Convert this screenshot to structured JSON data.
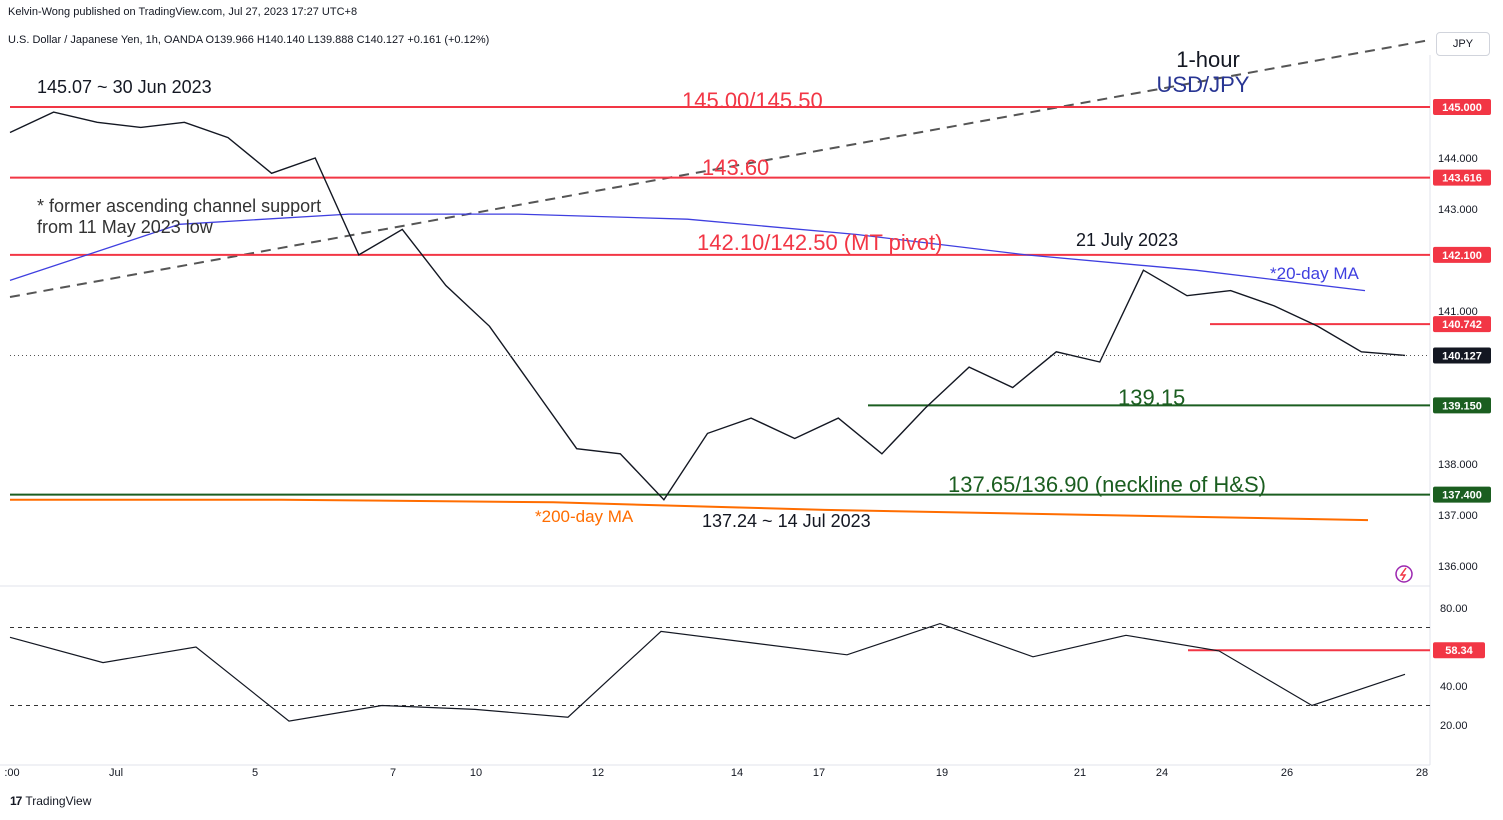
{
  "header": {
    "published": "Kelvin-Wong published on TradingView.com, Jul 27, 2023 17:27 UTC+8",
    "symbol_line": "U.S. Dollar / Japanese Yen, 1h, OANDA  O139.966  H140.140  L139.888  C140.127  +0.161 (+0.12%)"
  },
  "scale_button": "JPY",
  "footer_logo": "TradingView",
  "colors": {
    "resistance": "#f23645",
    "support": "#1b5e20",
    "ma20": "#3f3fe0",
    "ma200": "#ff6d00",
    "trendline": "#555555",
    "title_blue": "#283593"
  },
  "chart_data": [
    {
      "type": "line",
      "title": "1-hour",
      "subtitle": "USD/JPY",
      "ylim": [
        135.6,
        146.0
      ],
      "x_ticks": [
        ":00",
        "Jul",
        "5",
        "7",
        "10",
        "12",
        "14",
        "17",
        "19",
        "21",
        "24",
        "26",
        "28"
      ],
      "y_ticks": [
        "136.000",
        "137.000",
        "138.000",
        "141.000",
        "143.000",
        "144.000"
      ],
      "series": [
        {
          "name": "",
          "x": [
            "Jun 29",
            "Jun 30",
            "Jul 3",
            "Jul 4",
            "Jul 5",
            "Jul 6",
            "Jul 7",
            "Jul 7 pm",
            "Jul 10",
            "Jul 10 pm",
            "Jul 11",
            "Jul 12",
            "Jul 12 pm",
            "Jul 13",
            "Jul 13 pm",
            "Jul 14",
            "Jul 14 pm",
            "Jul 17",
            "Jul 18",
            "Jul 18 pm",
            "Jul 19",
            "Jul 19 pm",
            "Jul 20",
            "Jul 20 pm",
            "Jul 21",
            "Jul 21 pm",
            "Jul 24",
            "Jul 24 pm",
            "Jul 25",
            "Jul 25 pm",
            "Jul 26",
            "Jul 26 pm",
            "Jul 27"
          ],
          "values": [
            144.5,
            144.9,
            144.7,
            144.6,
            144.7,
            144.4,
            143.7,
            144.0,
            142.1,
            142.6,
            141.5,
            140.7,
            139.5,
            138.3,
            138.2,
            137.3,
            138.6,
            138.9,
            138.5,
            138.9,
            138.2,
            139.1,
            139.9,
            139.5,
            140.2,
            140.0,
            141.8,
            141.3,
            141.4,
            141.1,
            140.7,
            140.2,
            140.13
          ]
        }
      ],
      "moving_averages": [
        {
          "name": "*20-day MA",
          "x": [
            "Jun 29",
            "Jul 7",
            "Jul 10",
            "Jul 12",
            "Jul 14",
            "Jul 18",
            "Jul 20",
            "Jul 24",
            "Jul 26"
          ],
          "values": [
            141.6,
            142.7,
            142.9,
            142.9,
            142.8,
            142.5,
            142.1,
            141.8,
            141.4
          ]
        },
        {
          "name": "*200-day MA",
          "x": [
            "Jun 29",
            "Jul 7",
            "Jul 12",
            "Jul 17",
            "Jul 21",
            "Jul 26"
          ],
          "values": [
            137.3,
            137.3,
            137.25,
            137.1,
            137.0,
            136.9
          ]
        }
      ],
      "levels": [
        {
          "label": "145.00/145.50",
          "value": 145.0,
          "tag": "145.000",
          "kind": "resistance"
        },
        {
          "label": "143.60",
          "value": 143.616,
          "tag": "143.616",
          "kind": "resistance"
        },
        {
          "label": "142.10/142.50 (MT pivot)",
          "value": 142.1,
          "tag": "142.100",
          "kind": "resistance"
        },
        {
          "label": "",
          "value": 140.742,
          "tag": "140.742",
          "kind": "resistance"
        },
        {
          "label": "139.15",
          "value": 139.15,
          "tag": "139.150",
          "kind": "support"
        },
        {
          "label": "137.65/136.90 (neckline of H&S)",
          "value": 137.4,
          "tag": "137.400",
          "kind": "support"
        }
      ],
      "last_price_tag": "140.127",
      "annotations": {
        "high": "145.07 ~ 30 Jun 2023",
        "low": "137.24 ~ 14 Jul 2023",
        "swing": "21 July 2023",
        "channel_note_1": "* former ascending channel support",
        "channel_note_2": "from 11 May 2023 low"
      }
    },
    {
      "type": "line",
      "ylim": [
        10,
        86
      ],
      "y_ticks": [
        "20.00",
        "40.00",
        "80.00"
      ],
      "bands": [
        70,
        30
      ],
      "series": [
        {
          "name": "",
          "x": [
            "Jun 29",
            "Jul 3",
            "Jul 6",
            "Jul 10",
            "Jul 12",
            "Jul 13",
            "Jul 14",
            "Jul 17",
            "Jul 18",
            "Jul 19",
            "Jul 20",
            "Jul 21",
            "Jul 24",
            "Jul 25",
            "Jul 26",
            "Jul 27"
          ],
          "values": [
            65,
            52,
            60,
            22,
            30,
            28,
            24,
            68,
            62,
            56,
            72,
            55,
            66,
            58,
            30,
            46
          ]
        }
      ],
      "level": {
        "value": 58.34,
        "tag": "58.34"
      }
    }
  ]
}
